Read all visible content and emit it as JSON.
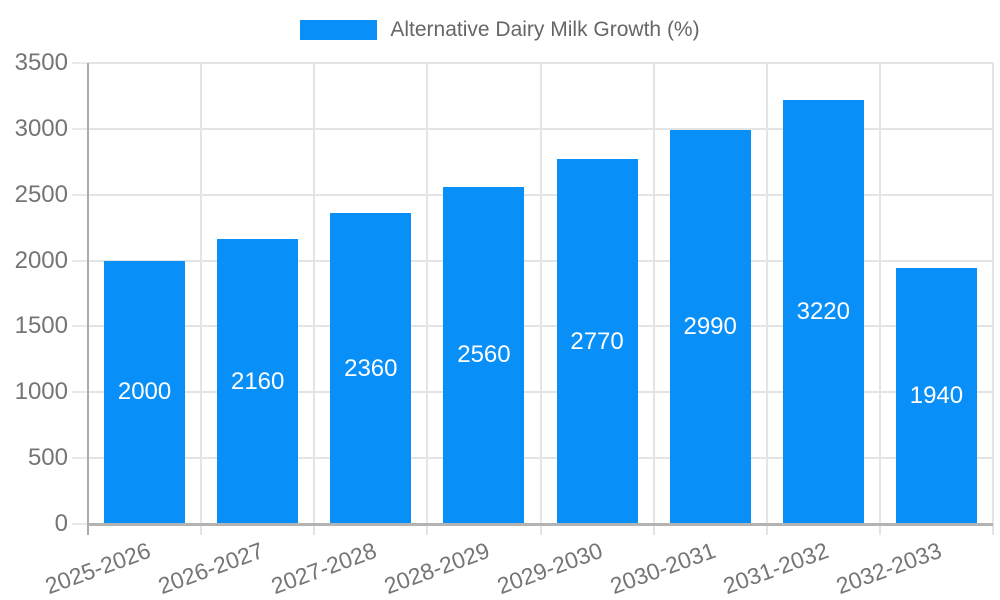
{
  "chart_data": {
    "type": "bar",
    "title": "Alternative Dairy Milk Growth (%)",
    "legend": {
      "position": "top",
      "label": "Alternative Dairy Milk Growth (%)"
    },
    "categories": [
      "2025-2026",
      "2026-2027",
      "2027-2028",
      "2028-2029",
      "2029-2030",
      "2030-2031",
      "2031-2032",
      "2032-2033"
    ],
    "values": [
      2000,
      2160,
      2360,
      2560,
      2770,
      2990,
      3220,
      1940
    ],
    "data_labels_shown": true,
    "xlabel": "",
    "ylabel": "",
    "ylim": [
      0,
      3500
    ],
    "y_ticks": [
      0,
      500,
      1000,
      1500,
      2000,
      2500,
      3000,
      3500
    ],
    "grid": true,
    "colors": {
      "bar": "#0890F8",
      "bar_value_label": "#ffffff",
      "tick_text": "#757575",
      "title_text": "#666666",
      "gridline": "#e4e4e4",
      "axis": "#ababab"
    }
  }
}
